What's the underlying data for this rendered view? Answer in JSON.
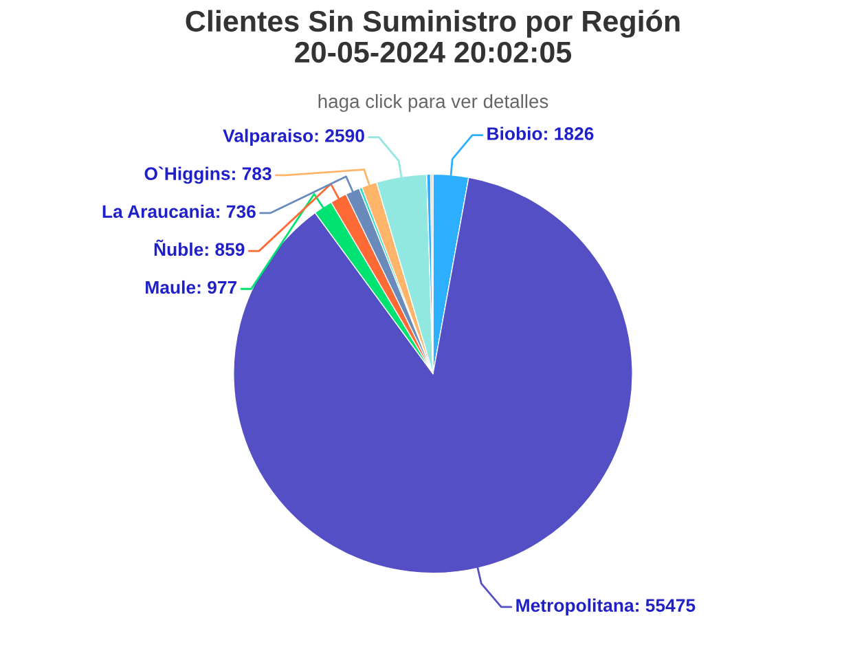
{
  "chart_data": {
    "type": "pie",
    "title": "Clientes Sin Suministro por Región\n20-05-2024 20:02:05",
    "subtitle": "haga click para ver detalles",
    "categories": [
      "Biobio",
      "Metropolitana",
      "Maule",
      "Ñuble",
      "La Araucania",
      null,
      "O`Higgins",
      "Valparaiso",
      null,
      null
    ],
    "values": [
      1826,
      55475,
      977,
      859,
      736,
      150,
      783,
      2590,
      200,
      120
    ],
    "value_labels": [
      "1826",
      "55475",
      "977",
      "859",
      "736",
      null,
      "783",
      "2590",
      null,
      null
    ],
    "colors": [
      "#2caffe",
      "#544fc5",
      "#00e272",
      "#fe6a35",
      "#6b8abc",
      "#2ee0ca",
      "#feb56a",
      "#91e8e1",
      "#2caffe",
      "#d8d8d8"
    ],
    "legend": false
  }
}
